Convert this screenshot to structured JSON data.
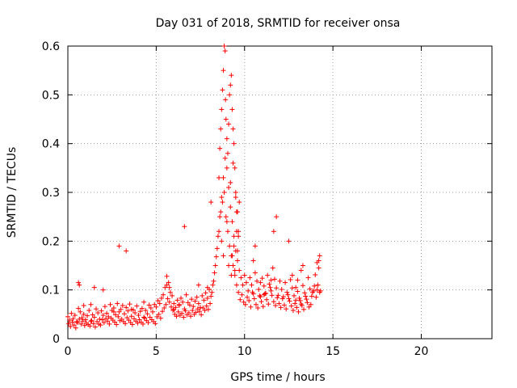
{
  "chart_data": {
    "type": "scatter",
    "title": "Day 031 of 2018, SRMTID for receiver onsa",
    "xlabel": "GPS time / hours",
    "ylabel": "SRMTID / TECUs",
    "xlim": [
      0,
      24
    ],
    "ylim": [
      0,
      0.6
    ],
    "xticks": [
      0,
      5,
      10,
      15,
      20
    ],
    "yticks": [
      0,
      0.1,
      0.2,
      0.3,
      0.4,
      0.5,
      0.6
    ],
    "x_tick_labels": [
      "0",
      "5",
      "10",
      "15",
      "20"
    ],
    "y_tick_labels": [
      "0",
      "0.1",
      "0.2",
      "0.3",
      "0.4",
      "0.5",
      "0.6"
    ],
    "grid": true,
    "marker": "+",
    "color": "#ff0000",
    "series": [
      {
        "name": "onsa",
        "x": [
          0.0,
          0.1,
          0.2,
          0.3,
          0.4,
          0.5,
          0.6,
          0.7,
          0.8,
          0.9,
          1.0,
          1.1,
          1.2,
          1.3,
          1.4,
          1.5,
          1.6,
          1.7,
          1.8,
          1.9,
          2.0,
          2.1,
          2.2,
          2.3,
          2.4,
          2.5,
          2.6,
          2.7,
          2.8,
          2.9,
          3.0,
          3.1,
          3.2,
          3.3,
          3.4,
          3.5,
          3.6,
          3.7,
          3.8,
          3.9,
          4.0,
          4.1,
          4.2,
          4.3,
          4.4,
          4.5,
          4.6,
          4.7,
          4.8,
          4.9,
          5.0,
          5.1,
          5.2,
          5.3,
          5.4,
          5.5,
          5.6,
          5.7,
          5.8,
          5.9,
          6.0,
          6.1,
          6.2,
          6.3,
          6.4,
          6.5,
          6.6,
          6.7,
          6.8,
          6.9,
          7.0,
          7.1,
          7.2,
          7.3,
          7.4,
          7.5,
          7.6,
          7.7,
          7.8,
          7.9,
          8.0,
          8.1,
          8.2,
          8.3,
          8.4,
          8.5,
          8.6,
          8.7,
          8.8,
          8.9,
          9.0,
          9.1,
          9.2,
          9.3,
          9.4,
          9.5,
          9.6,
          9.7,
          9.8,
          9.9,
          10.0,
          10.1,
          10.2,
          10.3,
          10.4,
          10.5,
          10.6,
          10.7,
          10.8,
          10.9,
          11.0,
          11.1,
          11.2,
          11.3,
          11.4,
          11.5,
          11.6,
          11.7,
          11.8,
          11.9,
          12.0,
          12.1,
          12.2,
          12.3,
          12.4,
          12.5,
          12.6,
          12.7,
          12.8,
          12.9,
          13.0,
          13.1,
          13.2,
          13.3,
          13.4,
          13.5,
          13.6,
          13.7,
          13.8,
          13.9,
          14.0,
          14.1,
          14.2,
          14.3,
          0.05,
          0.15,
          0.25,
          0.35,
          0.45,
          0.55,
          0.65,
          0.75,
          0.85,
          0.95,
          1.05,
          1.15,
          1.25,
          1.35,
          1.45,
          1.55,
          1.65,
          1.75,
          1.85,
          1.95,
          2.05,
          2.15,
          2.25,
          2.35,
          2.45,
          2.55,
          2.65,
          2.75,
          2.85,
          2.95,
          3.05,
          3.15,
          3.25,
          3.35,
          3.45,
          3.55,
          3.65,
          3.75,
          3.85,
          3.95,
          4.05,
          4.15,
          4.25,
          4.35,
          4.45,
          4.55,
          4.65,
          4.75,
          4.85,
          4.95,
          5.05,
          5.15,
          5.25,
          5.35,
          5.45,
          5.55,
          5.65,
          5.75,
          5.85,
          5.95,
          6.05,
          6.15,
          6.25,
          6.35,
          6.45,
          6.55,
          6.65,
          6.75,
          6.85,
          6.95,
          7.05,
          7.15,
          7.25,
          7.35,
          7.45,
          7.55,
          7.65,
          7.75,
          7.85,
          7.95,
          8.05,
          8.15,
          8.25,
          8.35,
          8.45,
          8.55,
          8.65,
          8.75,
          8.85,
          8.95,
          9.05,
          9.15,
          9.25,
          9.35,
          9.45,
          9.55,
          9.65,
          9.75,
          9.85,
          9.95,
          10.05,
          10.15,
          10.25,
          10.35,
          10.45,
          10.55,
          10.65,
          10.75,
          10.85,
          10.95,
          11.05,
          11.15,
          11.25,
          11.35,
          11.45,
          11.55,
          11.65,
          11.75,
          11.85,
          11.95,
          12.05,
          12.15,
          12.25,
          12.35,
          12.45,
          12.55,
          12.65,
          12.75,
          12.85,
          12.95,
          13.05,
          13.15,
          13.25,
          13.35,
          13.45,
          13.55,
          13.65,
          13.75,
          13.85,
          13.95,
          14.05,
          14.15,
          14.25,
          0.6,
          0.65,
          1.5,
          2.0,
          2.9,
          3.3,
          5.6,
          5.75,
          6.6,
          8.1,
          8.55,
          8.6,
          8.65,
          8.7,
          8.75,
          8.8,
          8.85,
          8.9,
          8.92,
          8.95,
          9.0,
          9.05,
          9.1,
          9.15,
          9.2,
          9.25,
          9.3,
          9.35,
          9.4,
          9.45,
          9.5,
          9.55,
          9.6,
          9.65,
          9.7,
          9.2,
          9.35,
          9.5,
          9.55,
          8.7,
          8.8,
          9.0,
          9.1,
          9.25,
          9.4,
          9.6,
          9.65,
          9.3,
          9.45,
          10.5,
          10.6,
          11.5,
          11.65,
          11.8,
          12.5,
          12.7,
          13.2,
          13.3,
          14.2,
          14.25,
          14.1,
          14.15,
          13.0,
          12.9,
          10.9,
          11.1,
          7.4,
          7.9,
          6.0,
          6.3,
          4.3,
          3.6,
          2.6,
          1.3,
          0.9
        ],
        "y": [
          0.045,
          0.038,
          0.052,
          0.041,
          0.048,
          0.035,
          0.062,
          0.055,
          0.043,
          0.05,
          0.039,
          0.047,
          0.058,
          0.036,
          0.049,
          0.044,
          0.061,
          0.053,
          0.04,
          0.057,
          0.048,
          0.066,
          0.052,
          0.045,
          0.07,
          0.058,
          0.063,
          0.049,
          0.072,
          0.055,
          0.06,
          0.068,
          0.051,
          0.064,
          0.057,
          0.071,
          0.046,
          0.059,
          0.053,
          0.067,
          0.048,
          0.056,
          0.062,
          0.044,
          0.058,
          0.051,
          0.069,
          0.063,
          0.055,
          0.07,
          0.065,
          0.078,
          0.072,
          0.083,
          0.09,
          0.105,
          0.128,
          0.115,
          0.095,
          0.088,
          0.072,
          0.064,
          0.079,
          0.068,
          0.083,
          0.075,
          0.061,
          0.09,
          0.074,
          0.069,
          0.081,
          0.066,
          0.077,
          0.085,
          0.072,
          0.064,
          0.088,
          0.079,
          0.094,
          0.083,
          0.101,
          0.087,
          0.11,
          0.135,
          0.168,
          0.21,
          0.25,
          0.29,
          0.33,
          0.37,
          0.35,
          0.31,
          0.27,
          0.24,
          0.21,
          0.18,
          0.16,
          0.14,
          0.125,
          0.11,
          0.13,
          0.115,
          0.098,
          0.125,
          0.11,
          0.092,
          0.135,
          0.118,
          0.101,
          0.086,
          0.124,
          0.108,
          0.093,
          0.13,
          0.112,
          0.098,
          0.145,
          0.122,
          0.104,
          0.089,
          0.118,
          0.101,
          0.086,
          0.115,
          0.095,
          0.082,
          0.121,
          0.104,
          0.088,
          0.079,
          0.097,
          0.083,
          0.071,
          0.109,
          0.094,
          0.081,
          0.125,
          0.102,
          0.087,
          0.098,
          0.131,
          0.156,
          0.145,
          0.098,
          0.031,
          0.025,
          0.034,
          0.028,
          0.022,
          0.033,
          0.04,
          0.03,
          0.036,
          0.027,
          0.032,
          0.029,
          0.026,
          0.037,
          0.031,
          0.024,
          0.035,
          0.03,
          0.028,
          0.039,
          0.033,
          0.041,
          0.036,
          0.03,
          0.042,
          0.038,
          0.034,
          0.029,
          0.045,
          0.037,
          0.04,
          0.035,
          0.031,
          0.043,
          0.038,
          0.033,
          0.029,
          0.041,
          0.036,
          0.032,
          0.039,
          0.034,
          0.03,
          0.042,
          0.037,
          0.033,
          0.044,
          0.039,
          0.035,
          0.031,
          0.045,
          0.05,
          0.042,
          0.056,
          0.063,
          0.07,
          0.082,
          0.075,
          0.065,
          0.058,
          0.05,
          0.046,
          0.055,
          0.048,
          0.052,
          0.044,
          0.057,
          0.049,
          0.053,
          0.046,
          0.058,
          0.05,
          0.054,
          0.061,
          0.056,
          0.049,
          0.063,
          0.058,
          0.067,
          0.06,
          0.072,
          0.095,
          0.118,
          0.15,
          0.185,
          0.22,
          0.26,
          0.28,
          0.3,
          0.25,
          0.22,
          0.19,
          0.17,
          0.15,
          0.13,
          0.11,
          0.095,
          0.08,
          0.09,
          0.075,
          0.07,
          0.085,
          0.078,
          0.065,
          0.095,
          0.082,
          0.07,
          0.063,
          0.088,
          0.076,
          0.066,
          0.092,
          0.08,
          0.071,
          0.105,
          0.089,
          0.076,
          0.068,
          0.084,
          0.072,
          0.064,
          0.082,
          0.069,
          0.061,
          0.09,
          0.077,
          0.067,
          0.058,
          0.072,
          0.064,
          0.055,
          0.078,
          0.068,
          0.06,
          0.087,
          0.074,
          0.065,
          0.07,
          0.095,
          0.108,
          0.085,
          0.11,
          0.095,
          0.115,
          0.11,
          0.105,
          0.1,
          0.19,
          0.18,
          0.11,
          0.105,
          0.23,
          0.28,
          0.33,
          0.39,
          0.43,
          0.47,
          0.51,
          0.55,
          0.6,
          0.59,
          0.49,
          0.45,
          0.41,
          0.38,
          0.44,
          0.5,
          0.52,
          0.54,
          0.47,
          0.43,
          0.4,
          0.35,
          0.3,
          0.22,
          0.18,
          0.22,
          0.28,
          0.32,
          0.36,
          0.29,
          0.26,
          0.2,
          0.17,
          0.24,
          0.15,
          0.13,
          0.19,
          0.26,
          0.21,
          0.17,
          0.14,
          0.16,
          0.19,
          0.12,
          0.22,
          0.25,
          0.2,
          0.13,
          0.14,
          0.15,
          0.16,
          0.17,
          0.1,
          0.11,
          0.12,
          0.105,
          0.115,
          0.09,
          0.11,
          0.105,
          0.06,
          0.07,
          0.075,
          0.06,
          0.055,
          0.07,
          0.068
        ]
      }
    ]
  }
}
